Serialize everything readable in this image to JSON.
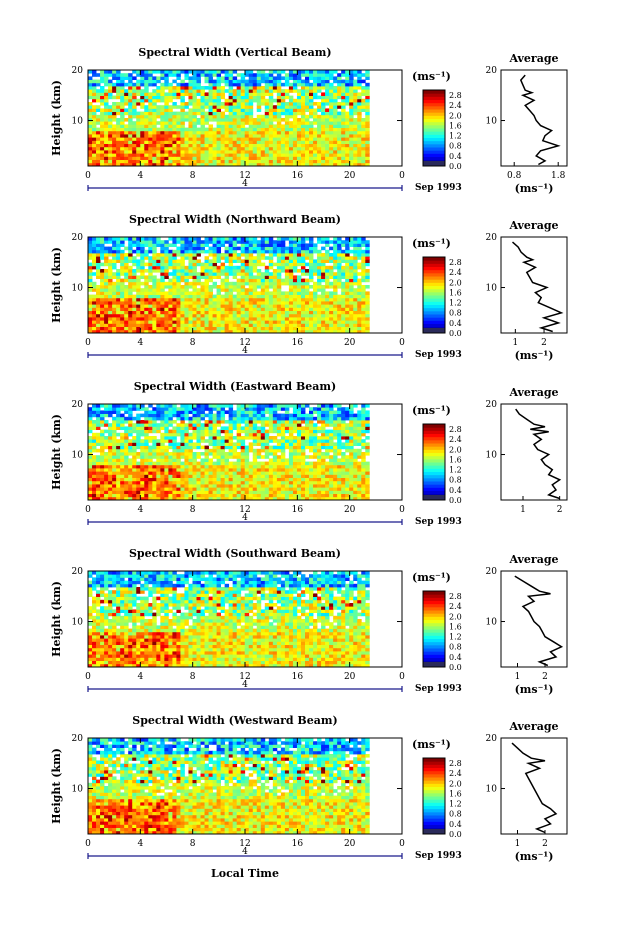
{
  "chart_data": [
    {
      "type": "heatmap",
      "title": "Spectral Width (Vertical Beam)",
      "ylabel": "Height (km)",
      "xlabel": "",
      "x_ticks": [
        "0",
        "4",
        "8",
        "12",
        "16",
        "20",
        "0"
      ],
      "y_ticks": [
        "20",
        "10"
      ],
      "date_label": "4",
      "month_label": "Sep 1993",
      "xlim": [
        0,
        24
      ],
      "ylim": [
        1,
        20
      ],
      "colorbar": {
        "unit": "(ms⁻¹)",
        "ticks": [
          "2.8",
          "2.4",
          "2.0",
          "1.6",
          "1.2",
          "0.8",
          "0.4",
          "0.0"
        ],
        "range": [
          0.0,
          3.0
        ]
      },
      "data_end_hour": 21.5,
      "profile": {
        "title": "Average",
        "xlabel": "(ms⁻¹)",
        "x_ticks": [
          "0.8",
          "1.8"
        ],
        "y_ticks": [
          "20",
          "10"
        ],
        "xlim": [
          0.5,
          2.0
        ],
        "points": [
          [
            1.05,
            19
          ],
          [
            0.95,
            18
          ],
          [
            1.0,
            17
          ],
          [
            1.05,
            16
          ],
          [
            1.2,
            15.5
          ],
          [
            1.0,
            15
          ],
          [
            1.25,
            14
          ],
          [
            1.05,
            13
          ],
          [
            1.15,
            12
          ],
          [
            1.25,
            11
          ],
          [
            1.3,
            10
          ],
          [
            1.4,
            9
          ],
          [
            1.65,
            8
          ],
          [
            1.5,
            7
          ],
          [
            1.45,
            6
          ],
          [
            1.8,
            5
          ],
          [
            1.4,
            4
          ],
          [
            1.3,
            3
          ],
          [
            1.5,
            2
          ],
          [
            1.35,
            1.3
          ]
        ]
      }
    },
    {
      "type": "heatmap",
      "title": "Spectral Width (Northward Beam)",
      "ylabel": "Height (km)",
      "xlabel": "",
      "x_ticks": [
        "0",
        "4",
        "8",
        "12",
        "16",
        "20",
        "0"
      ],
      "y_ticks": [
        "20",
        "10"
      ],
      "date_label": "4",
      "month_label": "Sep 1993",
      "xlim": [
        0,
        24
      ],
      "ylim": [
        1,
        20
      ],
      "colorbar": {
        "unit": "(ms⁻¹)",
        "ticks": [
          "2.8",
          "2.4",
          "2.0",
          "1.6",
          "1.2",
          "0.8",
          "0.4",
          "0.0"
        ],
        "range": [
          0.0,
          3.0
        ]
      },
      "data_end_hour": 21.5,
      "profile": {
        "title": "Average",
        "xlabel": "(ms⁻¹)",
        "x_ticks": [
          "1",
          "2"
        ],
        "y_ticks": [
          "20",
          "10"
        ],
        "xlim": [
          0.5,
          2.8
        ],
        "points": [
          [
            0.9,
            19
          ],
          [
            1.1,
            18
          ],
          [
            1.2,
            17
          ],
          [
            1.4,
            16
          ],
          [
            1.6,
            15.5
          ],
          [
            1.3,
            15
          ],
          [
            1.7,
            14
          ],
          [
            1.4,
            13
          ],
          [
            1.5,
            12
          ],
          [
            1.6,
            11
          ],
          [
            2.1,
            10
          ],
          [
            1.7,
            9
          ],
          [
            1.9,
            8
          ],
          [
            1.8,
            7
          ],
          [
            2.2,
            6
          ],
          [
            2.6,
            5
          ],
          [
            2.0,
            4
          ],
          [
            2.5,
            3
          ],
          [
            1.9,
            2
          ],
          [
            2.3,
            1.3
          ]
        ]
      }
    },
    {
      "type": "heatmap",
      "title": "Spectral Width (Eastward Beam)",
      "ylabel": "Height (km)",
      "xlabel": "",
      "x_ticks": [
        "0",
        "4",
        "8",
        "12",
        "16",
        "20",
        "0"
      ],
      "y_ticks": [
        "20",
        "10"
      ],
      "date_label": "4",
      "month_label": "Sep 1993",
      "xlim": [
        0,
        24
      ],
      "ylim": [
        1,
        20
      ],
      "colorbar": {
        "unit": "(ms⁻¹)",
        "ticks": [
          "2.8",
          "2.4",
          "2.0",
          "1.6",
          "1.2",
          "0.8",
          "0.4",
          "0.0"
        ],
        "range": [
          0.0,
          3.0
        ]
      },
      "data_end_hour": 21.5,
      "profile": {
        "title": "Average",
        "xlabel": "",
        "x_ticks": [
          "1",
          "2"
        ],
        "y_ticks": [
          "20",
          "10"
        ],
        "xlim": [
          0.4,
          2.2
        ],
        "points": [
          [
            0.8,
            19
          ],
          [
            0.9,
            18
          ],
          [
            1.1,
            17
          ],
          [
            1.3,
            16
          ],
          [
            1.6,
            15.5
          ],
          [
            1.2,
            15
          ],
          [
            1.7,
            14.5
          ],
          [
            1.3,
            14
          ],
          [
            1.5,
            13
          ],
          [
            1.3,
            12
          ],
          [
            1.4,
            11
          ],
          [
            1.7,
            10
          ],
          [
            1.5,
            9
          ],
          [
            1.6,
            8
          ],
          [
            1.8,
            7
          ],
          [
            1.7,
            6
          ],
          [
            2.0,
            5
          ],
          [
            1.8,
            4
          ],
          [
            1.9,
            3
          ],
          [
            1.7,
            2
          ],
          [
            2.0,
            1.3
          ]
        ]
      }
    },
    {
      "type": "heatmap",
      "title": "Spectral Width (Southward Beam)",
      "ylabel": "Height (km)",
      "xlabel": "",
      "x_ticks": [
        "0",
        "4",
        "8",
        "12",
        "16",
        "20",
        "0"
      ],
      "y_ticks": [
        "20",
        "10"
      ],
      "date_label": "4",
      "month_label": "Sep 1993",
      "xlim": [
        0,
        24
      ],
      "ylim": [
        1,
        20
      ],
      "colorbar": {
        "unit": "(ms⁻¹)",
        "ticks": [
          "2.8",
          "2.4",
          "2.0",
          "1.6",
          "1.2",
          "0.8",
          "0.4",
          "0.0"
        ],
        "range": [
          0.0,
          3.0
        ]
      },
      "data_end_hour": 21.5,
      "profile": {
        "title": "Average",
        "xlabel": "(ms⁻¹)",
        "x_ticks": [
          "1",
          "2"
        ],
        "y_ticks": [
          "20",
          "10"
        ],
        "xlim": [
          0.4,
          2.8
        ],
        "points": [
          [
            0.9,
            19
          ],
          [
            1.2,
            18
          ],
          [
            1.5,
            17
          ],
          [
            1.8,
            16
          ],
          [
            2.2,
            15.5
          ],
          [
            1.4,
            15
          ],
          [
            1.6,
            14
          ],
          [
            1.2,
            13
          ],
          [
            1.4,
            12
          ],
          [
            1.5,
            11
          ],
          [
            1.6,
            10
          ],
          [
            1.8,
            9
          ],
          [
            1.9,
            8
          ],
          [
            2.0,
            7
          ],
          [
            2.3,
            6
          ],
          [
            2.6,
            5
          ],
          [
            2.2,
            4
          ],
          [
            2.4,
            3
          ],
          [
            1.8,
            2
          ],
          [
            2.1,
            1.3
          ]
        ]
      }
    },
    {
      "type": "heatmap",
      "title": "Spectral Width (Westward Beam)",
      "ylabel": "Height (km)",
      "xlabel": "Local Time",
      "x_ticks": [
        "0",
        "4",
        "8",
        "12",
        "16",
        "20",
        "0"
      ],
      "y_ticks": [
        "20",
        "10"
      ],
      "date_label": "4",
      "month_label": "Sep 1993",
      "xlim": [
        0,
        24
      ],
      "ylim": [
        1,
        20
      ],
      "colorbar": {
        "unit": "(ms⁻¹)",
        "ticks": [
          "2.8",
          "2.4",
          "2.0",
          "1.6",
          "1.2",
          "0.8",
          "0.4",
          "0.0"
        ],
        "range": [
          0.0,
          3.0
        ]
      },
      "data_end_hour": 21.5,
      "profile": {
        "title": "Average",
        "xlabel": "(ms⁻¹)",
        "x_ticks": [
          "1",
          "2"
        ],
        "y_ticks": [
          "20",
          "10"
        ],
        "xlim": [
          0.4,
          2.8
        ],
        "points": [
          [
            0.8,
            19
          ],
          [
            1.0,
            18
          ],
          [
            1.2,
            17
          ],
          [
            1.5,
            16
          ],
          [
            2.0,
            15.5
          ],
          [
            1.4,
            15
          ],
          [
            1.8,
            14
          ],
          [
            1.3,
            13
          ],
          [
            1.4,
            12
          ],
          [
            1.5,
            11
          ],
          [
            1.6,
            10
          ],
          [
            1.7,
            9
          ],
          [
            1.8,
            8
          ],
          [
            1.9,
            7
          ],
          [
            2.2,
            6
          ],
          [
            2.4,
            5
          ],
          [
            2.0,
            4
          ],
          [
            2.2,
            3
          ],
          [
            1.7,
            2
          ],
          [
            2.0,
            1.3
          ]
        ]
      }
    }
  ]
}
